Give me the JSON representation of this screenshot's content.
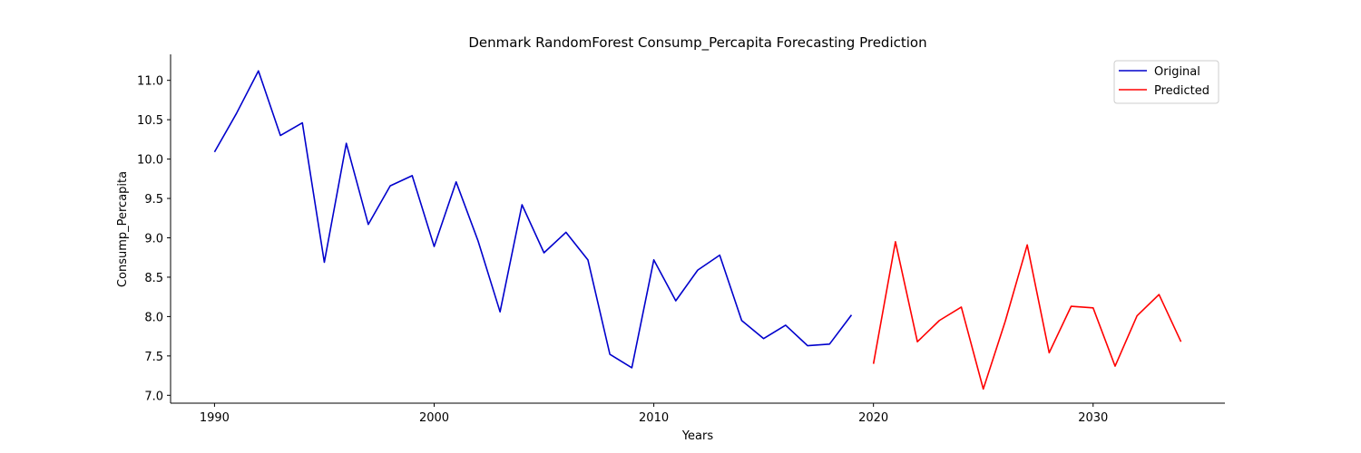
{
  "chart_data": {
    "type": "line",
    "title": "Denmark RandomForest Consump_Percapita Forecasting Prediction",
    "xlabel": "Years",
    "ylabel": "Consump_Percapita",
    "xlim": [
      1988,
      2036
    ],
    "ylim": [
      6.9,
      11.33
    ],
    "xticks": [
      1990,
      2000,
      2010,
      2020,
      2030
    ],
    "yticks": [
      "7.0",
      "7.5",
      "8.0",
      "8.5",
      "9.0",
      "9.5",
      "10.0",
      "10.5",
      "11.0"
    ],
    "grid": false,
    "legend_position": "top-right",
    "series": [
      {
        "name": "Original",
        "color": "#0000cc",
        "x": [
          1990,
          1991,
          1992,
          1993,
          1994,
          1995,
          1996,
          1997,
          1998,
          1999,
          2000,
          2001,
          2002,
          2003,
          2004,
          2005,
          2006,
          2007,
          2008,
          2009,
          2010,
          2011,
          2012,
          2013,
          2014,
          2015,
          2016,
          2017,
          2018,
          2019
        ],
        "values": [
          10.09,
          10.58,
          11.12,
          10.3,
          10.46,
          8.69,
          10.2,
          9.17,
          9.66,
          9.79,
          8.89,
          9.71,
          8.96,
          8.06,
          9.42,
          8.81,
          9.07,
          8.72,
          7.52,
          7.35,
          8.72,
          8.2,
          8.59,
          8.78,
          7.95,
          7.72,
          7.89,
          7.63,
          7.65,
          8.02
        ]
      },
      {
        "name": "Predicted",
        "color": "#ff0000",
        "x": [
          2020,
          2021,
          2022,
          2023,
          2024,
          2025,
          2026,
          2027,
          2028,
          2029,
          2030,
          2031,
          2032,
          2033,
          2034
        ],
        "values": [
          7.4,
          8.95,
          7.68,
          7.95,
          8.12,
          7.08,
          7.94,
          8.91,
          7.54,
          8.13,
          8.11,
          7.37,
          8.01,
          8.28,
          7.68
        ]
      }
    ]
  }
}
